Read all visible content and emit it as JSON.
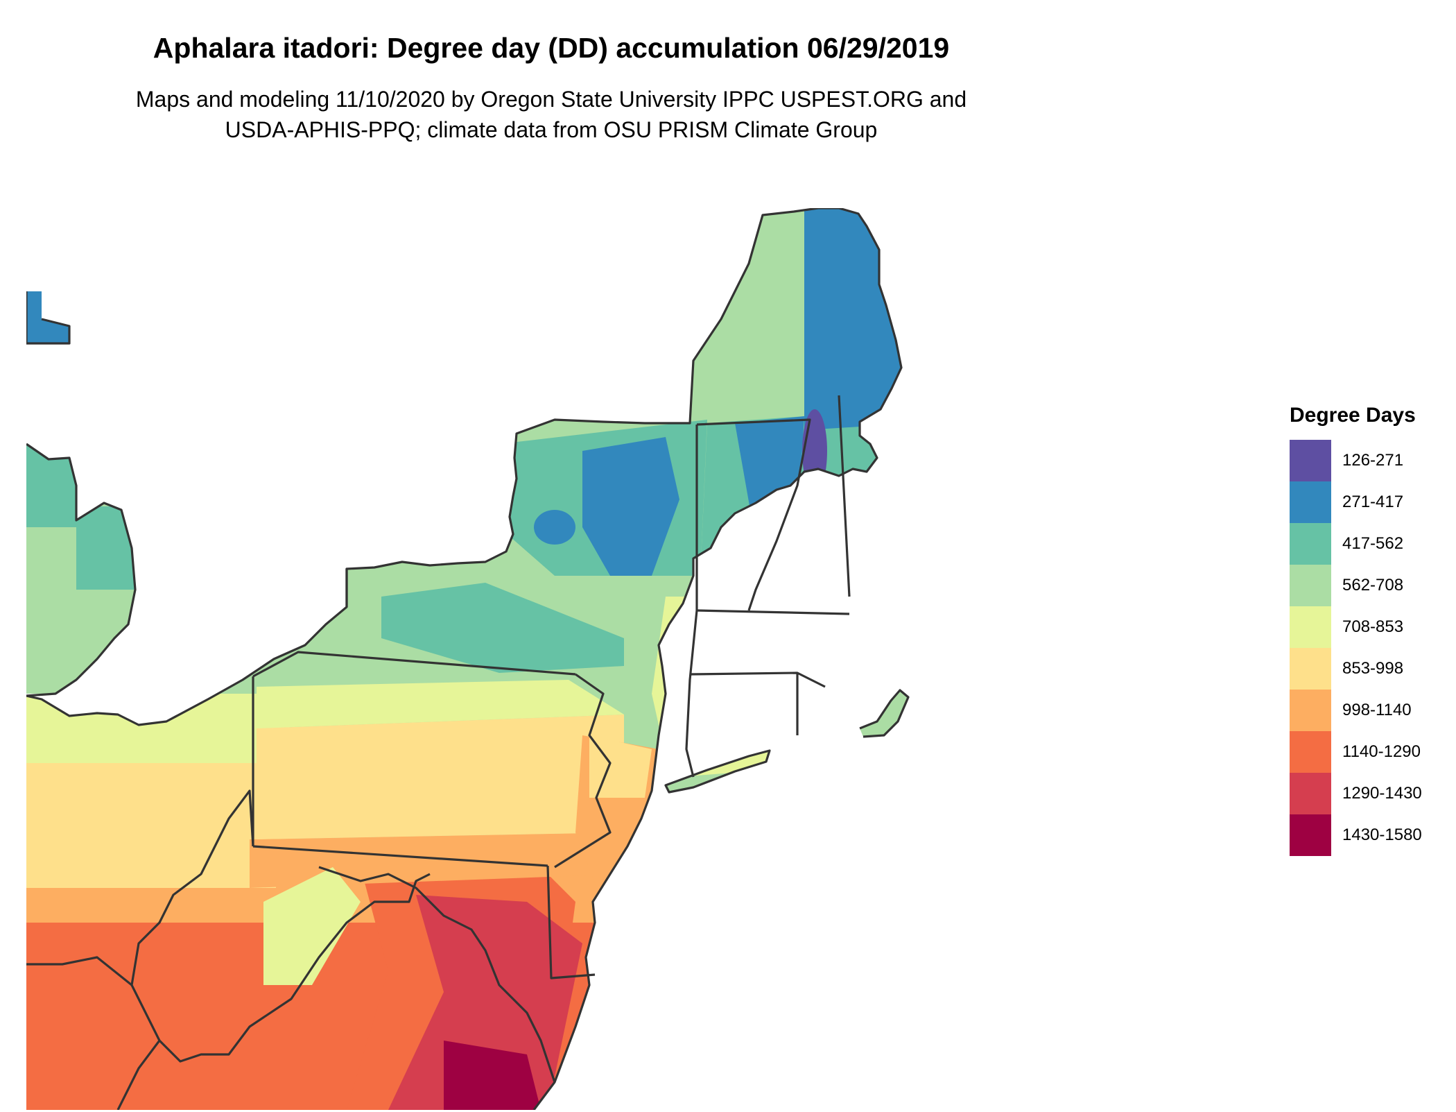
{
  "title": "Aphalara itadori: Degree day (DD) accumulation 06/29/2019",
  "subtitle_line1": "Maps and modeling 11/10/2020 by Oregon State University IPPC USPEST.ORG and",
  "subtitle_line2": "USDA-APHIS-PPQ; climate data from OSU PRISM Climate Group",
  "legend": {
    "title": "Degree Days",
    "items": [
      {
        "label": "126-271",
        "color": "#5e4fa2"
      },
      {
        "label": "271-417",
        "color": "#3288bd"
      },
      {
        "label": "417-562",
        "color": "#66c2a5"
      },
      {
        "label": "562-708",
        "color": "#abdda4"
      },
      {
        "label": "708-853",
        "color": "#e6f598"
      },
      {
        "label": "853-998",
        "color": "#fee08b"
      },
      {
        "label": "998-1140",
        "color": "#fdae61"
      },
      {
        "label": "1140-1290",
        "color": "#f46d43"
      },
      {
        "label": "1290-1430",
        "color": "#d53e4f"
      },
      {
        "label": "1430-1580",
        "color": "#9e0142"
      }
    ]
  }
}
